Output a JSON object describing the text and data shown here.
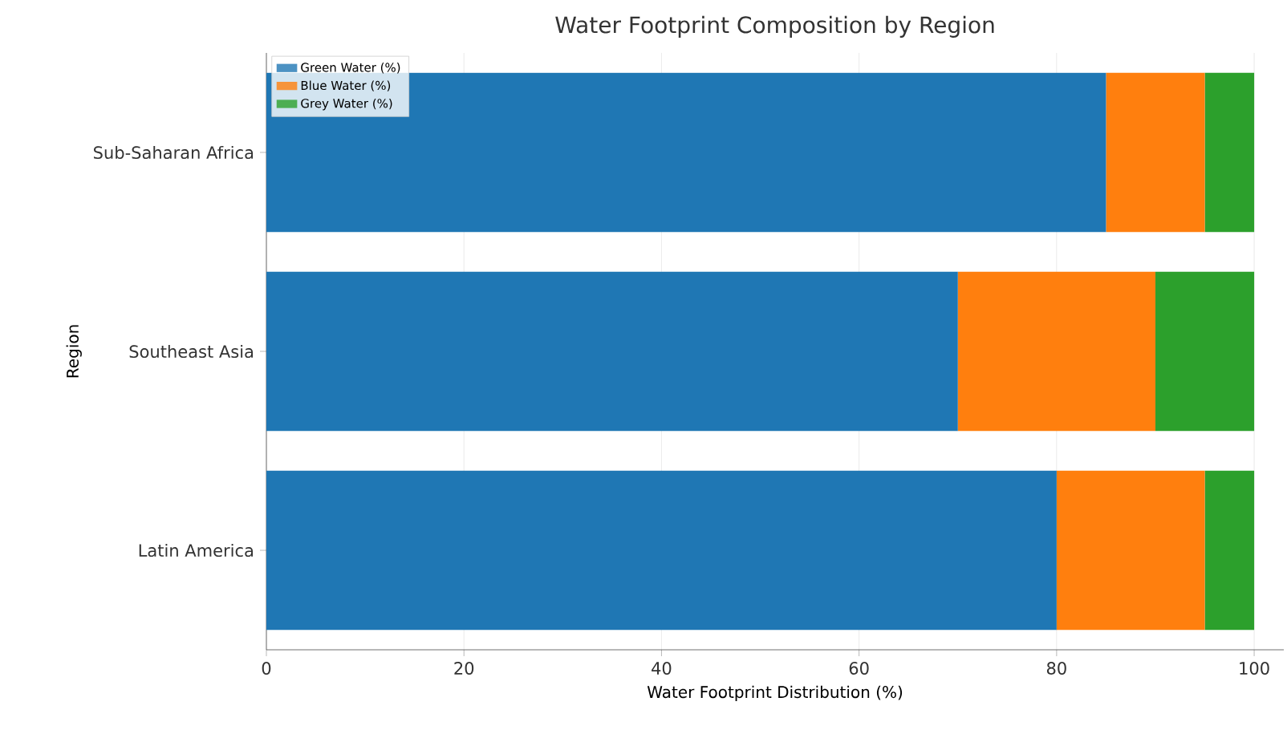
{
  "chart_data": {
    "type": "bar",
    "orientation": "horizontal",
    "stacked": true,
    "title": "Water Footprint Composition by Region",
    "xlabel": "Water Footprint Distribution (%)",
    "ylabel": "Region",
    "categories": [
      "Sub-Saharan Africa",
      "Southeast Asia",
      "Latin America"
    ],
    "series": [
      {
        "name": "Green Water (%)",
        "color": "#1f77b4",
        "values": [
          85,
          70,
          80
        ]
      },
      {
        "name": "Blue Water (%)",
        "color": "#ff7f0e",
        "values": [
          10,
          20,
          15
        ]
      },
      {
        "name": "Grey Water (%)",
        "color": "#2ca02c",
        "values": [
          5,
          10,
          5
        ]
      }
    ],
    "xlim": [
      0,
      103
    ],
    "xticks": [
      0,
      20,
      40,
      60,
      80,
      100
    ],
    "grid": "x",
    "legend": "top left"
  }
}
